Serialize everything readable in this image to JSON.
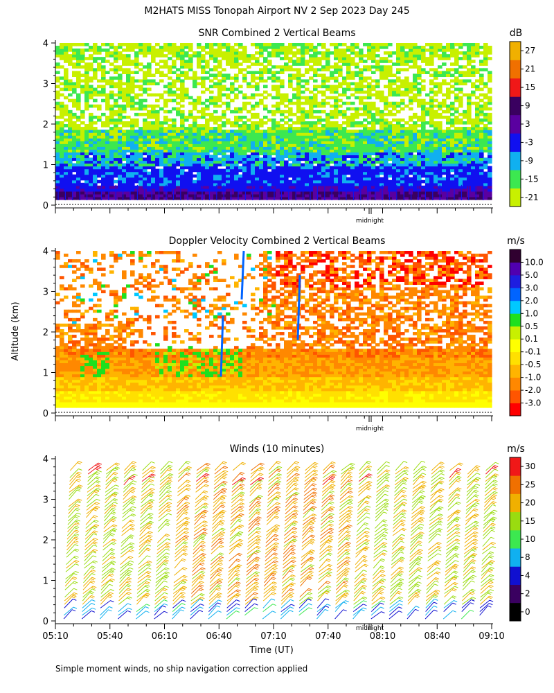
{
  "figure_title": "M2HATS MISS Tonopah Airport NV   2 Sep 2023 Day 245",
  "y_axis_label": "Altitude (km)",
  "x_axis_label": "Time (UT)",
  "midnight_label": "midnight",
  "footnote": "Simple moment winds, no ship navigation correction applied",
  "colors": {
    "snr": [
      "#c8f000",
      "#3ce850",
      "#10b0f0",
      "#1010f0",
      "#5a00a0",
      "#3a0060",
      "#f01818",
      "#f07000",
      "#f0b000"
    ],
    "doppler": [
      "#ff0000",
      "#ff5500",
      "#ff8800",
      "#ffb400",
      "#ffe000",
      "#ffff00",
      "#c8f000",
      "#1ee01e",
      "#00c8ff",
      "#0064ff",
      "#1e1ee0",
      "#5000b0",
      "#300030"
    ],
    "winds": [
      "#000000",
      "#3a0060",
      "#1010d0",
      "#10b0f0",
      "#3ce850",
      "#9adc10",
      "#f0b000",
      "#f07000",
      "#f01818"
    ]
  },
  "chart_data": [
    {
      "type": "heatmap",
      "title": "SNR Combined 2 Vertical Beams",
      "colorbar_units": "dB",
      "colorbar_ticks": [
        "-21",
        "-15",
        "-9",
        "-3",
        "3",
        "9",
        "15",
        "21",
        "27"
      ],
      "x_range": [
        "05:10",
        "09:10"
      ],
      "ylim": [
        0,
        4
      ],
      "yticks": [
        "0",
        "1",
        "2",
        "3",
        "4"
      ],
      "xticks": [],
      "profile_db_by_altitude": [
        {
          "alt_km": 0.2,
          "db": 9
        },
        {
          "alt_km": 0.5,
          "db": 0
        },
        {
          "alt_km": 1.0,
          "db": -3
        },
        {
          "alt_km": 1.4,
          "db": -9
        },
        {
          "alt_km": 1.8,
          "db": -15
        },
        {
          "alt_km": 2.5,
          "db": -20
        },
        {
          "alt_km": 3.5,
          "db": -21
        }
      ]
    },
    {
      "type": "heatmap",
      "title": "Doppler Velocity Combined 2 Vertical Beams",
      "colorbar_units": "m/s",
      "colorbar_ticks": [
        "-3.0",
        "-2.0",
        "-1.0",
        "-0.5",
        "-0.1",
        "0.1",
        "0.5",
        "1.0",
        "2.0",
        "3.0",
        "5.0",
        "10.0"
      ],
      "x_range": [
        "05:10",
        "09:10"
      ],
      "ylim": [
        0,
        4
      ],
      "yticks": [
        "0",
        "1",
        "2",
        "3",
        "4"
      ],
      "xticks": [],
      "profile_ms_by_altitude": [
        {
          "alt_km": 0.2,
          "ms": 0.0
        },
        {
          "alt_km": 0.6,
          "ms": -0.3
        },
        {
          "alt_km": 1.2,
          "ms": -0.7
        },
        {
          "alt_km": 1.8,
          "ms": -1.2
        },
        {
          "alt_km": 3.0,
          "ms": -1.5
        },
        {
          "alt_km": 3.6,
          "ms": -2.5
        }
      ]
    },
    {
      "type": "scatter",
      "title": "Winds (10 minutes)",
      "colorbar_units": "m/s",
      "colorbar_ticks": [
        "0",
        "2",
        "4",
        "8",
        "10",
        "15",
        "20",
        "25",
        "30"
      ],
      "x_range": [
        "05:10",
        "09:10"
      ],
      "ylim": [
        0,
        4
      ],
      "yticks": [
        "0",
        "1",
        "2",
        "3",
        "4"
      ],
      "xticks": [
        "05:10",
        "05:40",
        "06:10",
        "06:40",
        "07:10",
        "07:40",
        "08:10",
        "08:40",
        "09:10"
      ],
      "profile_interval_minutes": 10,
      "typical_speed_ms_by_altitude": [
        {
          "alt_km": 0.1,
          "speed": 6
        },
        {
          "alt_km": 1.0,
          "speed": 16
        },
        {
          "alt_km": 2.0,
          "speed": 20
        },
        {
          "alt_km": 3.0,
          "speed": 18
        },
        {
          "alt_km": 3.8,
          "speed": 22
        }
      ]
    }
  ]
}
